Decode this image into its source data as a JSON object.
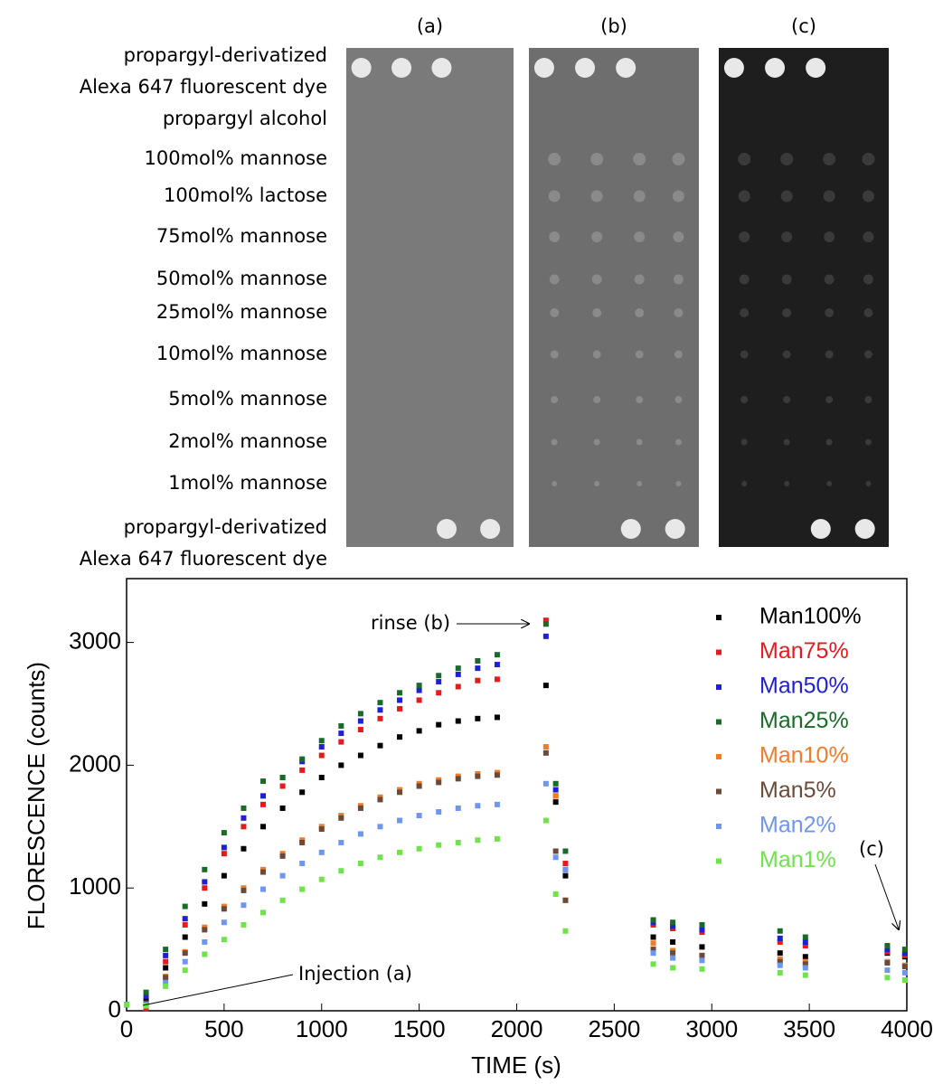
{
  "panels": {
    "panel_labels": [
      "(a)",
      "(b)",
      "(c)"
    ],
    "row_labels": [
      [
        "propargyl-derivatized",
        "Alexa 647 fluorescent dye"
      ],
      [
        "propargyl alcohol"
      ],
      [
        "100mol% mannose"
      ],
      [
        "100mol% lactose"
      ],
      [
        "75mol% mannose"
      ],
      [
        "50mol% mannose"
      ],
      [
        "25mol% mannose"
      ],
      [
        "10mol% mannose"
      ],
      [
        "5mol% mannose"
      ],
      [
        "2mol% mannose"
      ],
      [
        "1mol% mannose"
      ],
      [
        "propargyl-derivatized",
        "Alexa 647 fluorescent dye"
      ]
    ]
  },
  "chart_data": {
    "type": "scatter",
    "xlabel": "TIME (s)",
    "ylabel": "FLORESCENCE (counts)",
    "x": [
      0,
      100,
      200,
      300,
      400,
      500,
      600,
      700,
      800,
      900,
      1000,
      1100,
      1200,
      1300,
      1400,
      1500,
      1600,
      1700,
      1800,
      1900,
      2150,
      2200,
      2250,
      2700,
      2800,
      2950,
      3350,
      3480,
      3900,
      3990
    ],
    "series": [
      {
        "name": "Man100%",
        "color": "#000000",
        "values": [
          50,
          80,
          350,
          600,
          870,
          1100,
          1320,
          1500,
          1650,
          1780,
          1900,
          2000,
          2080,
          2160,
          2230,
          2280,
          2330,
          2360,
          2380,
          2390,
          2650,
          1700,
          1100,
          600,
          560,
          520,
          470,
          440,
          470,
          440
        ]
      },
      {
        "name": "Man75%",
        "color": "#e41a1c",
        "values": [
          50,
          20,
          400,
          700,
          1000,
          1280,
          1500,
          1680,
          1830,
          1960,
          2080,
          2190,
          2290,
          2380,
          2460,
          2530,
          2590,
          2640,
          2690,
          2700,
          3180,
          1750,
          1200,
          700,
          670,
          640,
          560,
          530,
          480,
          450
        ]
      },
      {
        "name": "Man50%",
        "color": "#1f1fd6",
        "values": [
          50,
          120,
          450,
          750,
          1050,
          1330,
          1570,
          1750,
          1900,
          2030,
          2150,
          2260,
          2360,
          2450,
          2530,
          2610,
          2680,
          2740,
          2790,
          2820,
          3050,
          1800,
          1150,
          720,
          690,
          660,
          590,
          560,
          500,
          470
        ]
      },
      {
        "name": "Man25%",
        "color": "#1a6b2a",
        "values": [
          50,
          150,
          500,
          850,
          1150,
          1450,
          1650,
          1870,
          1900,
          2050,
          2200,
          2320,
          2420,
          2510,
          2590,
          2650,
          2730,
          2790,
          2850,
          2900,
          3150,
          1850,
          1300,
          740,
          720,
          700,
          650,
          600,
          530,
          500
        ]
      },
      {
        "name": "Man10%",
        "color": "#f07c2a",
        "values": [
          50,
          60,
          280,
          480,
          680,
          850,
          1000,
          1150,
          1280,
          1390,
          1500,
          1590,
          1670,
          1740,
          1800,
          1850,
          1880,
          1910,
          1930,
          1940,
          2150,
          1750,
          900,
          550,
          490,
          450,
          420,
          400,
          400,
          370
        ]
      },
      {
        "name": "Man5%",
        "color": "#6b4a3a",
        "values": [
          50,
          60,
          270,
          470,
          660,
          830,
          980,
          1130,
          1260,
          1370,
          1480,
          1570,
          1650,
          1720,
          1780,
          1830,
          1860,
          1890,
          1910,
          1920,
          2100,
          1300,
          900,
          500,
          470,
          450,
          400,
          380,
          390,
          360
        ]
      },
      {
        "name": "Man2%",
        "color": "#6f95f0",
        "values": [
          50,
          50,
          230,
          400,
          560,
          720,
          860,
          990,
          1100,
          1200,
          1290,
          1370,
          1440,
          1500,
          1550,
          1590,
          1620,
          1650,
          1670,
          1680,
          1850,
          1250,
          1150,
          470,
          430,
          410,
          370,
          350,
          330,
          310
        ]
      },
      {
        "name": "Man1%",
        "color": "#6ee44a",
        "values": [
          50,
          40,
          200,
          330,
          460,
          580,
          700,
          800,
          900,
          990,
          1070,
          1140,
          1200,
          1250,
          1290,
          1320,
          1350,
          1370,
          1390,
          1400,
          1550,
          950,
          650,
          380,
          350,
          340,
          310,
          290,
          270,
          250
        ]
      }
    ],
    "xlim": [
      0,
      4000
    ],
    "ylim": [
      0,
      3520
    ],
    "xticks": [
      0,
      500,
      1000,
      1500,
      2000,
      2500,
      3000,
      3500,
      4000
    ],
    "yticks": [
      0,
      1000,
      2000,
      3000
    ],
    "annotations": [
      "rinse (b)",
      "Injection (a)",
      "(c)"
    ]
  }
}
